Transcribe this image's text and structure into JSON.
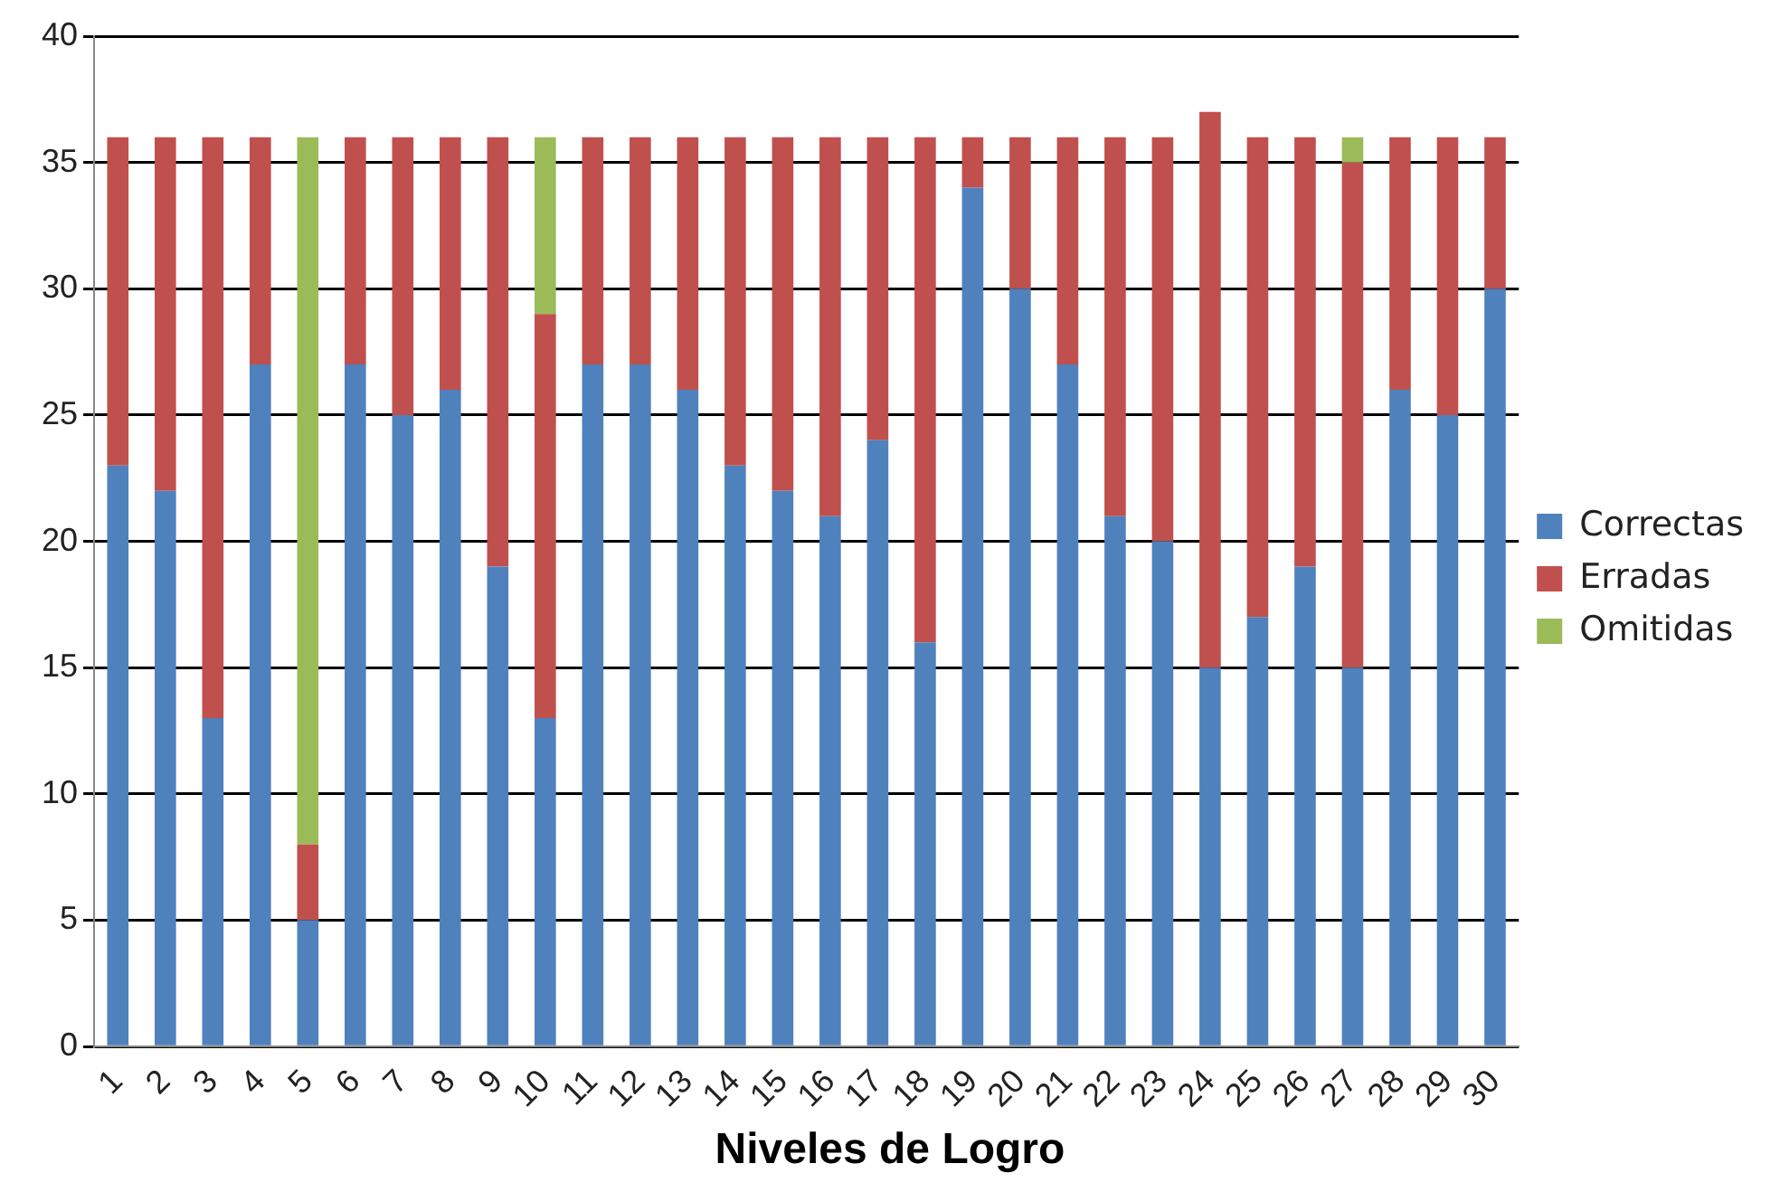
{
  "chart_data": {
    "type": "bar",
    "stacked": true,
    "xlabel": "Niveles de Logro",
    "categories": [
      "1",
      "2",
      "3",
      "4",
      "5",
      "6",
      "7",
      "8",
      "9",
      "10",
      "11",
      "12",
      "13",
      "14",
      "15",
      "16",
      "17",
      "18",
      "19",
      "20",
      "21",
      "22",
      "23",
      "24",
      "25",
      "26",
      "27",
      "28",
      "29",
      "30"
    ],
    "series": [
      {
        "name": "Correctas",
        "color": "#4f81bd",
        "values": [
          23,
          22,
          13,
          27,
          5,
          27,
          25,
          26,
          19,
          13,
          27,
          27,
          26,
          23,
          22,
          21,
          24,
          16,
          34,
          30,
          27,
          21,
          20,
          15,
          17,
          19,
          15,
          26,
          25,
          30
        ]
      },
      {
        "name": "Erradas",
        "color": "#c0504d",
        "values": [
          13,
          14,
          23,
          9,
          3,
          9,
          11,
          10,
          17,
          16,
          9,
          9,
          10,
          13,
          14,
          15,
          12,
          20,
          2,
          6,
          9,
          15,
          16,
          22,
          19,
          17,
          20,
          10,
          11,
          6
        ]
      },
      {
        "name": "Omitidas",
        "color": "#9bbb59",
        "values": [
          0,
          0,
          0,
          0,
          28,
          0,
          0,
          0,
          0,
          7,
          0,
          0,
          0,
          0,
          0,
          0,
          0,
          0,
          0,
          0,
          0,
          0,
          0,
          0,
          0,
          0,
          1,
          0,
          0,
          0
        ]
      }
    ],
    "ylim": [
      0,
      40
    ],
    "yticks": [
      0,
      5,
      10,
      15,
      20,
      25,
      30,
      35,
      40
    ],
    "grid": "y",
    "legend": "right"
  }
}
